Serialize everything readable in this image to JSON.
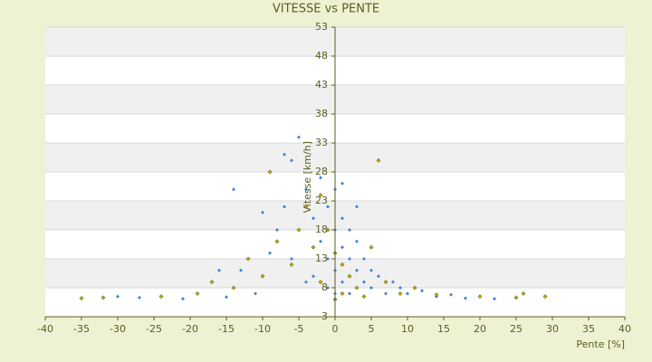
{
  "chart_data": {
    "type": "scatter",
    "title": "VITESSE vs PENTE",
    "x_label": "Pente [%]",
    "y_label": "Vitesse [km/h]",
    "xlim": [
      -40,
      40
    ],
    "xticks": [
      -40,
      -35,
      -30,
      -25,
      -20,
      -15,
      -10,
      -5,
      0,
      5,
      10,
      15,
      20,
      25,
      30,
      35,
      40
    ],
    "ylim": [
      3,
      53
    ],
    "yticks": [
      3,
      8,
      13,
      18,
      23,
      28,
      33,
      38,
      43,
      48,
      53
    ],
    "grid": true,
    "series": [
      {
        "color": "#3d86d2",
        "x": [
          -35,
          -30,
          -27,
          -21,
          -15,
          -13,
          -11,
          -9,
          -8,
          -7,
          -6,
          -5,
          -4,
          -3,
          -3,
          -2,
          -2,
          -1,
          -1,
          -1,
          0,
          0,
          0,
          0,
          1,
          1,
          1,
          2,
          2,
          2,
          3,
          3,
          4,
          4,
          5,
          5,
          6,
          7,
          8,
          9,
          10,
          12,
          14,
          16,
          18,
          22,
          -14,
          -10,
          -6,
          -4,
          -16,
          1,
          3,
          -7
        ],
        "values": [
          6.2,
          6.5,
          6.3,
          6.1,
          6.4,
          11,
          7,
          14,
          18,
          22,
          30,
          34,
          25,
          20,
          10,
          16,
          27,
          22,
          13,
          8,
          18,
          25,
          11,
          7,
          15,
          20,
          9,
          13,
          18,
          7,
          11,
          16,
          9,
          13,
          8,
          11,
          10,
          7,
          9,
          8,
          7,
          7.5,
          6.5,
          6.8,
          6.2,
          6.1,
          25,
          21,
          13,
          9,
          11,
          26,
          22,
          31
        ]
      },
      {
        "color": "#c9b800",
        "x": [
          -35,
          -32,
          -24,
          -19,
          -17,
          -12,
          -10,
          -8,
          -6,
          -5,
          -4,
          -3,
          -2,
          -2,
          -1,
          0,
          0,
          1,
          1,
          2,
          3,
          4,
          5,
          6,
          7,
          9,
          11,
          14,
          20,
          25,
          26,
          29,
          -9,
          -14
        ],
        "values": [
          6.2,
          6.3,
          6.5,
          7,
          9,
          13,
          10,
          16,
          12,
          18,
          22,
          15,
          9,
          24,
          18,
          6,
          14,
          7,
          12,
          10,
          8,
          6.5,
          15,
          30,
          9,
          7,
          8,
          6.8,
          6.5,
          6.3,
          7,
          6.5,
          28,
          8
        ]
      }
    ]
  }
}
